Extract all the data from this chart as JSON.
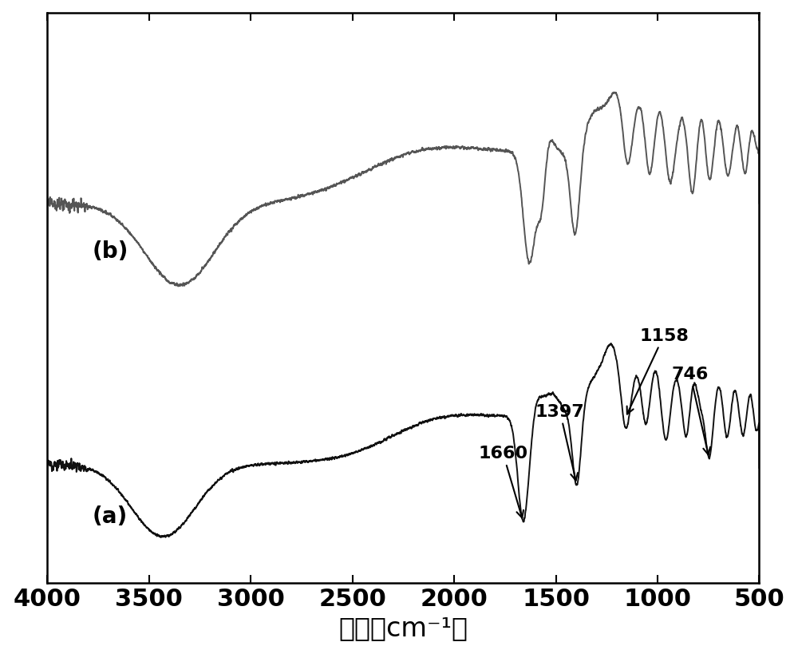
{
  "xlabel": "波长（cm⁻¹）",
  "xlabel_fontsize": 24,
  "xticks": [
    4000,
    3500,
    3000,
    2500,
    2000,
    1500,
    1000,
    500
  ],
  "xtick_fontsize": 22,
  "label_a": "(a)",
  "label_b": "(b)",
  "label_fontsize": 20,
  "line_color_a": "#111111",
  "line_color_b": "#555555",
  "line_width": 1.4,
  "background_color": "#ffffff",
  "annot_fontsize": 16
}
